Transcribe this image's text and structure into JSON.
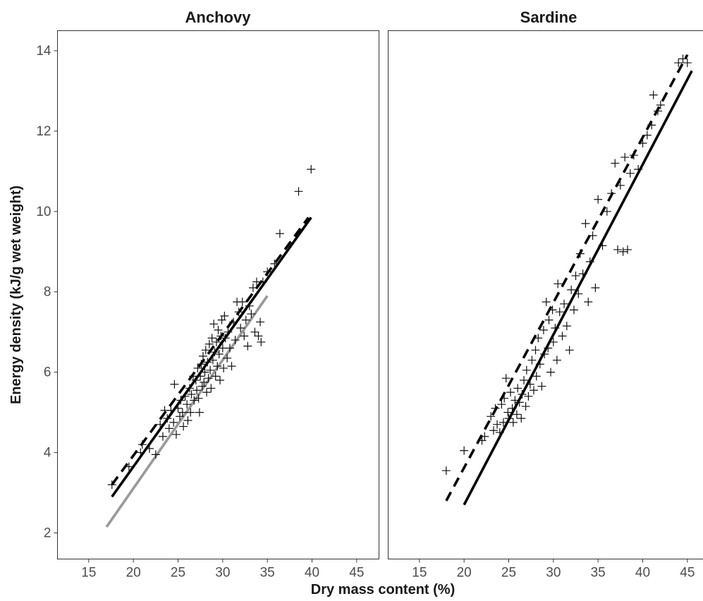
{
  "chart_data": {
    "type": "scatter",
    "xlabel": "Dry mass content (%)",
    "ylabel": "Energy density (kJ/g wet weight)",
    "xlim": [
      11.5,
      47.5
    ],
    "ylim": [
      1.35,
      14.5
    ],
    "x_ticks": [
      15,
      20,
      25,
      30,
      35,
      40,
      45
    ],
    "y_ticks": [
      2,
      4,
      6,
      8,
      10,
      12,
      14
    ],
    "grid": false,
    "legend": "none",
    "panels": [
      {
        "title": "Anchovy",
        "points": [
          [
            17.6,
            3.2
          ],
          [
            19.5,
            3.65
          ],
          [
            20.8,
            4.0
          ],
          [
            21.0,
            4.2
          ],
          [
            21.8,
            4.1
          ],
          [
            22.5,
            3.95
          ],
          [
            23.0,
            4.7
          ],
          [
            23.3,
            4.4
          ],
          [
            23.5,
            5.05
          ],
          [
            23.8,
            4.85
          ],
          [
            24.0,
            4.6
          ],
          [
            24.2,
            5.05
          ],
          [
            24.5,
            4.75
          ],
          [
            24.6,
            5.7
          ],
          [
            24.8,
            4.45
          ],
          [
            25.0,
            5.1
          ],
          [
            25.2,
            4.9
          ],
          [
            25.3,
            5.3
          ],
          [
            25.5,
            5.0
          ],
          [
            25.6,
            4.65
          ],
          [
            25.8,
            5.4
          ],
          [
            26.0,
            5.2
          ],
          [
            26.1,
            4.8
          ],
          [
            26.3,
            5.6
          ],
          [
            26.4,
            5.0
          ],
          [
            26.5,
            5.45
          ],
          [
            26.7,
            5.9
          ],
          [
            26.8,
            5.3
          ],
          [
            27.0,
            5.8
          ],
          [
            27.1,
            5.55
          ],
          [
            27.2,
            6.1
          ],
          [
            27.3,
            5.35
          ],
          [
            27.4,
            5.0
          ],
          [
            27.5,
            5.9
          ],
          [
            27.6,
            6.2
          ],
          [
            27.7,
            5.65
          ],
          [
            27.8,
            6.4
          ],
          [
            27.9,
            5.75
          ],
          [
            28.0,
            6.0
          ],
          [
            28.1,
            6.55
          ],
          [
            28.2,
            5.5
          ],
          [
            28.3,
            6.25
          ],
          [
            28.4,
            5.85
          ],
          [
            28.5,
            6.7
          ],
          [
            28.6,
            6.05
          ],
          [
            28.7,
            5.6
          ],
          [
            28.8,
            6.85
          ],
          [
            28.9,
            6.3
          ],
          [
            29.0,
            7.2
          ],
          [
            29.1,
            6.5
          ],
          [
            29.2,
            5.9
          ],
          [
            29.3,
            6.75
          ],
          [
            29.4,
            6.15
          ],
          [
            29.5,
            7.05
          ],
          [
            29.6,
            6.45
          ],
          [
            29.7,
            5.8
          ],
          [
            29.8,
            6.9
          ],
          [
            29.9,
            7.3
          ],
          [
            30.0,
            6.6
          ],
          [
            30.1,
            6.1
          ],
          [
            30.2,
            7.4
          ],
          [
            30.3,
            6.85
          ],
          [
            30.5,
            6.35
          ],
          [
            30.6,
            7.0
          ],
          [
            30.8,
            6.6
          ],
          [
            31.0,
            6.15
          ],
          [
            31.2,
            7.25
          ],
          [
            31.4,
            6.8
          ],
          [
            31.6,
            7.75
          ],
          [
            31.8,
            7.5
          ],
          [
            32.0,
            7.1
          ],
          [
            32.2,
            7.75
          ],
          [
            32.4,
            6.9
          ],
          [
            32.6,
            7.3
          ],
          [
            32.8,
            6.65
          ],
          [
            33.0,
            7.65
          ],
          [
            33.2,
            7.45
          ],
          [
            33.4,
            8.1
          ],
          [
            33.6,
            7.0
          ],
          [
            33.8,
            8.25
          ],
          [
            34.0,
            6.9
          ],
          [
            34.2,
            7.25
          ],
          [
            34.3,
            6.75
          ],
          [
            34.5,
            8.25
          ],
          [
            35.0,
            8.5
          ],
          [
            35.8,
            8.7
          ],
          [
            36.4,
            9.45
          ],
          [
            38.5,
            10.5
          ],
          [
            39.9,
            11.05
          ]
        ],
        "lines": [
          {
            "style": "solid",
            "color": "#000000",
            "x": [
              17.6,
              39.9
            ],
            "y": [
              2.9,
              9.85
            ]
          },
          {
            "style": "dashed",
            "color": "#000000",
            "x": [
              17.6,
              39.6
            ],
            "y": [
              3.2,
              9.85
            ]
          },
          {
            "style": "solid",
            "color": "#999999",
            "x": [
              17.0,
              35.0
            ],
            "y": [
              2.15,
              7.9
            ]
          }
        ]
      },
      {
        "title": "Sardine",
        "points": [
          [
            18.0,
            3.55
          ],
          [
            20.0,
            4.05
          ],
          [
            22.0,
            4.3
          ],
          [
            22.3,
            4.4
          ],
          [
            23.0,
            4.9
          ],
          [
            23.3,
            4.55
          ],
          [
            23.5,
            5.1
          ],
          [
            23.7,
            4.7
          ],
          [
            24.0,
            4.5
          ],
          [
            24.2,
            5.2
          ],
          [
            24.4,
            4.75
          ],
          [
            24.5,
            5.35
          ],
          [
            24.7,
            5.85
          ],
          [
            24.9,
            5.0
          ],
          [
            25.0,
            4.85
          ],
          [
            25.2,
            5.5
          ],
          [
            25.4,
            5.1
          ],
          [
            25.5,
            4.75
          ],
          [
            25.7,
            5.3
          ],
          [
            25.9,
            4.95
          ],
          [
            26.0,
            5.6
          ],
          [
            26.2,
            5.25
          ],
          [
            26.4,
            4.85
          ],
          [
            26.5,
            5.45
          ],
          [
            26.7,
            5.8
          ],
          [
            26.9,
            5.15
          ],
          [
            27.0,
            6.05
          ],
          [
            27.2,
            5.4
          ],
          [
            27.4,
            5.7
          ],
          [
            27.6,
            6.3
          ],
          [
            27.8,
            5.55
          ],
          [
            28.0,
            6.55
          ],
          [
            28.1,
            5.9
          ],
          [
            28.3,
            6.85
          ],
          [
            28.5,
            6.2
          ],
          [
            28.7,
            5.65
          ],
          [
            28.9,
            7.05
          ],
          [
            29.0,
            6.45
          ],
          [
            29.2,
            7.75
          ],
          [
            29.4,
            6.6
          ],
          [
            29.5,
            7.3
          ],
          [
            29.7,
            6.0
          ],
          [
            29.9,
            7.55
          ],
          [
            30.0,
            6.75
          ],
          [
            30.2,
            7.1
          ],
          [
            30.4,
            6.3
          ],
          [
            30.5,
            8.2
          ],
          [
            30.7,
            7.5
          ],
          [
            31.0,
            6.9
          ],
          [
            31.2,
            7.7
          ],
          [
            31.5,
            7.15
          ],
          [
            31.8,
            6.55
          ],
          [
            32.0,
            8.05
          ],
          [
            32.3,
            7.55
          ],
          [
            32.5,
            8.4
          ],
          [
            32.8,
            7.95
          ],
          [
            33.0,
            8.95
          ],
          [
            33.3,
            8.45
          ],
          [
            33.6,
            9.7
          ],
          [
            33.9,
            7.75
          ],
          [
            34.1,
            8.75
          ],
          [
            34.4,
            9.4
          ],
          [
            34.7,
            8.1
          ],
          [
            35.0,
            10.3
          ],
          [
            35.5,
            9.15
          ],
          [
            36.0,
            10.0
          ],
          [
            36.5,
            10.45
          ],
          [
            36.9,
            11.2
          ],
          [
            37.2,
            9.05
          ],
          [
            37.5,
            10.65
          ],
          [
            37.8,
            9.0
          ],
          [
            38.0,
            11.35
          ],
          [
            38.3,
            9.05
          ],
          [
            38.6,
            10.95
          ],
          [
            39.0,
            11.4
          ],
          [
            39.5,
            11.05
          ],
          [
            40.0,
            11.7
          ],
          [
            40.5,
            11.9
          ],
          [
            41.0,
            12.15
          ],
          [
            41.2,
            12.9
          ],
          [
            41.7,
            12.5
          ],
          [
            42.0,
            12.65
          ],
          [
            44.0,
            13.7
          ],
          [
            44.5,
            13.8
          ],
          [
            45.0,
            13.7
          ]
        ],
        "lines": [
          {
            "style": "solid",
            "color": "#000000",
            "x": [
              20.0,
              45.5
            ],
            "y": [
              2.7,
              13.5
            ]
          },
          {
            "style": "dashed",
            "color": "#000000",
            "x": [
              18.0,
              45.0
            ],
            "y": [
              2.8,
              13.9
            ]
          }
        ]
      }
    ]
  }
}
